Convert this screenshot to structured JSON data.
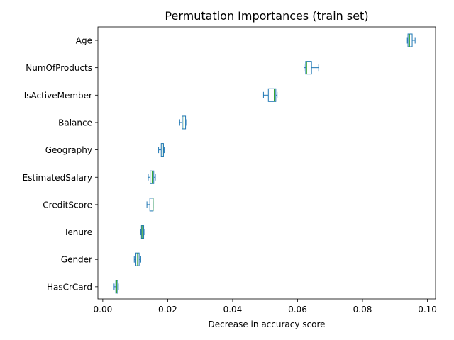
{
  "chart_data": {
    "type": "box",
    "title": "Permutation Importances (train set)",
    "xlabel": "Decrease in accuracy score",
    "ylabel": "",
    "xlim": [
      -0.0015,
      0.1025
    ],
    "xticks": [
      0.0,
      0.02,
      0.04,
      0.06,
      0.08,
      0.1
    ],
    "xtick_labels": [
      "0.00",
      "0.02",
      "0.04",
      "0.06",
      "0.08",
      "0.10"
    ],
    "orientation": "horizontal",
    "grid": false,
    "colors": {
      "box": "#1f77b4",
      "median": "#2ca02c",
      "axis": "#000000"
    },
    "categories": [
      {
        "label": "Age",
        "whisker_low": 0.0938,
        "q1": 0.094,
        "median": 0.0945,
        "q3": 0.0953,
        "whisker_high": 0.0962
      },
      {
        "label": "NumOfProducts",
        "whisker_low": 0.062,
        "q1": 0.0625,
        "median": 0.0628,
        "q3": 0.0643,
        "whisker_high": 0.0665
      },
      {
        "label": "IsActiveMember",
        "whisker_low": 0.0495,
        "q1": 0.051,
        "median": 0.0528,
        "q3": 0.0533,
        "whisker_high": 0.0537
      },
      {
        "label": "Balance",
        "whisker_low": 0.0237,
        "q1": 0.0245,
        "median": 0.025,
        "q3": 0.0255,
        "whisker_high": 0.0256
      },
      {
        "label": "Geography",
        "whisker_low": 0.0172,
        "q1": 0.018,
        "median": 0.0183,
        "q3": 0.0187,
        "whisker_high": 0.0189
      },
      {
        "label": "EstimatedSalary",
        "whisker_low": 0.014,
        "q1": 0.0146,
        "median": 0.0152,
        "q3": 0.0157,
        "whisker_high": 0.0162
      },
      {
        "label": "CreditScore",
        "whisker_low": 0.0136,
        "q1": 0.0145,
        "median": 0.0155,
        "q3": 0.0155,
        "whisker_high": 0.0155
      },
      {
        "label": "Tenure",
        "whisker_low": 0.0117,
        "q1": 0.0119,
        "median": 0.0121,
        "q3": 0.0126,
        "whisker_high": 0.0127
      },
      {
        "label": "Gender",
        "whisker_low": 0.0097,
        "q1": 0.0102,
        "median": 0.0107,
        "q3": 0.0112,
        "whisker_high": 0.0117
      },
      {
        "label": "HasCrCard",
        "whisker_low": 0.0035,
        "q1": 0.004,
        "median": 0.0043,
        "q3": 0.0046,
        "whisker_high": 0.0048
      }
    ]
  }
}
